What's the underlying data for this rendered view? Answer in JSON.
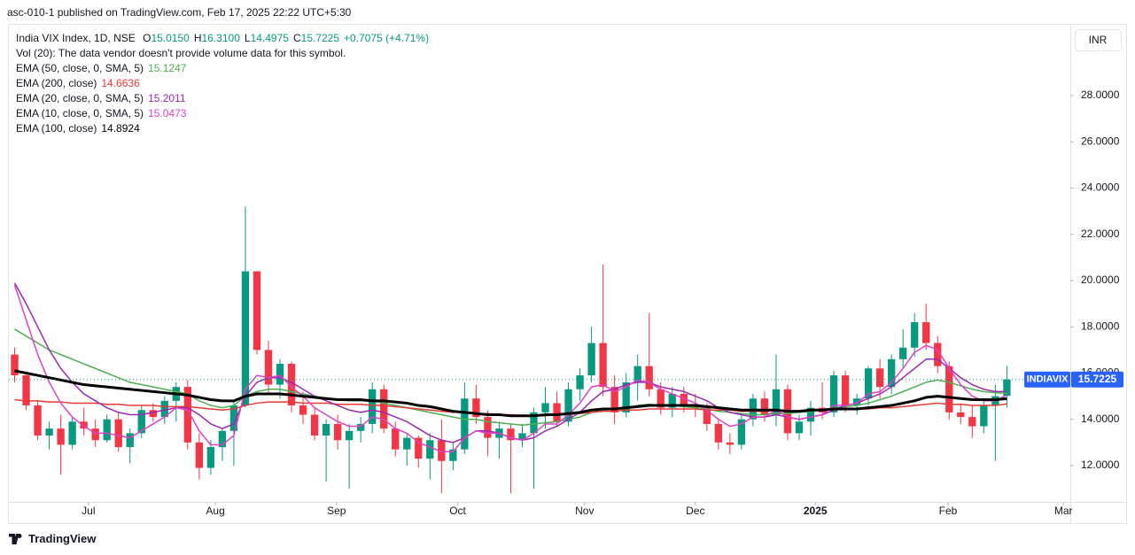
{
  "header": {
    "published": "asc-010-1 published on TradingView.com, Feb 17, 2025 22:22 UTC+5:30",
    "footer": "TradingView"
  },
  "chart_data": {
    "type": "candlestick",
    "symbol": "India VIX Index, 1D, NSE",
    "ohlc_legend": [
      {
        "key": "O",
        "value": "15.0150"
      },
      {
        "key": "H",
        "value": "16.3100"
      },
      {
        "key": "L",
        "value": "14.4975"
      },
      {
        "key": "C",
        "value": "15.7225"
      }
    ],
    "change": "+0.7075 (+4.71%)",
    "volume_note": "Vol (20): The data vendor doesn't provide volume data for this symbol.",
    "currency": "INR",
    "ticker": "INDIAVIX",
    "up_color": "#089981",
    "down_color": "#f23645",
    "ohlc": [
      [
        16.8,
        17.1,
        15.6,
        15.9
      ],
      [
        15.9,
        16.0,
        14.4,
        14.6
      ],
      [
        14.6,
        14.8,
        13.1,
        13.3
      ],
      [
        13.3,
        13.9,
        12.7,
        13.6
      ],
      [
        13.6,
        14.2,
        11.6,
        12.9
      ],
      [
        12.9,
        14.1,
        12.7,
        13.9
      ],
      [
        13.9,
        14.5,
        13.3,
        13.6
      ],
      [
        13.6,
        14.0,
        12.8,
        13.1
      ],
      [
        13.1,
        14.2,
        13.0,
        14.0
      ],
      [
        14.0,
        14.3,
        12.6,
        12.8
      ],
      [
        12.8,
        13.6,
        12.1,
        13.4
      ],
      [
        13.4,
        14.6,
        13.2,
        14.4
      ],
      [
        14.4,
        14.7,
        13.9,
        14.1
      ],
      [
        14.1,
        15.0,
        13.8,
        14.8
      ],
      [
        14.8,
        15.6,
        13.9,
        15.4
      ],
      [
        15.4,
        15.7,
        12.7,
        13.0
      ],
      [
        13.0,
        13.4,
        11.4,
        11.9
      ],
      [
        11.9,
        13.1,
        11.6,
        12.8
      ],
      [
        12.8,
        13.6,
        12.2,
        13.5
      ],
      [
        13.5,
        14.8,
        12.0,
        14.6
      ],
      [
        14.6,
        23.2,
        14.5,
        20.4
      ],
      [
        20.4,
        20.4,
        16.8,
        17.0
      ],
      [
        17.0,
        17.4,
        15.1,
        15.5
      ],
      [
        15.5,
        16.6,
        14.9,
        16.4
      ],
      [
        16.4,
        16.5,
        14.3,
        14.6
      ],
      [
        14.6,
        15.2,
        13.8,
        14.2
      ],
      [
        14.2,
        14.5,
        13.1,
        13.3
      ],
      [
        13.3,
        14.0,
        11.3,
        13.8
      ],
      [
        13.8,
        14.2,
        12.7,
        13.1
      ],
      [
        13.1,
        13.8,
        11.0,
        13.5
      ],
      [
        13.5,
        14.1,
        13.0,
        13.8
      ],
      [
        13.8,
        15.6,
        13.4,
        15.3
      ],
      [
        15.3,
        15.5,
        13.4,
        13.6
      ],
      [
        13.6,
        13.9,
        12.4,
        12.7
      ],
      [
        12.7,
        13.4,
        12.0,
        13.2
      ],
      [
        13.2,
        13.3,
        11.9,
        12.3
      ],
      [
        12.3,
        13.4,
        11.4,
        13.1
      ],
      [
        13.1,
        14.0,
        10.8,
        12.2
      ],
      [
        12.2,
        13.0,
        11.8,
        12.7
      ],
      [
        12.7,
        15.6,
        12.5,
        14.9
      ],
      [
        14.9,
        15.5,
        13.8,
        14.1
      ],
      [
        14.1,
        14.4,
        12.4,
        13.2
      ],
      [
        13.2,
        13.9,
        12.3,
        13.6
      ],
      [
        13.6,
        13.8,
        10.8,
        13.1
      ],
      [
        13.1,
        13.8,
        12.8,
        13.4
      ],
      [
        13.4,
        14.5,
        11.0,
        14.3
      ],
      [
        14.3,
        15.4,
        13.6,
        14.7
      ],
      [
        14.7,
        15.2,
        13.7,
        13.9
      ],
      [
        13.9,
        15.6,
        13.7,
        15.3
      ],
      [
        15.3,
        16.2,
        14.8,
        15.9
      ],
      [
        15.9,
        18.0,
        15.6,
        17.3
      ],
      [
        17.3,
        20.7,
        15.0,
        15.4
      ],
      [
        15.4,
        15.9,
        13.8,
        14.3
      ],
      [
        14.3,
        16.0,
        14.1,
        15.6
      ],
      [
        15.6,
        16.8,
        14.8,
        16.3
      ],
      [
        16.3,
        18.6,
        15.0,
        15.3
      ],
      [
        15.3,
        15.6,
        14.2,
        14.5
      ],
      [
        14.5,
        15.4,
        14.1,
        15.1
      ],
      [
        15.1,
        15.4,
        14.3,
        14.6
      ],
      [
        14.6,
        15.1,
        14.1,
        14.5
      ],
      [
        14.5,
        14.7,
        13.5,
        13.8
      ],
      [
        13.8,
        14.0,
        12.7,
        13.0
      ],
      [
        13.0,
        13.4,
        12.5,
        12.9
      ],
      [
        12.9,
        14.2,
        12.7,
        14.0
      ],
      [
        14.0,
        15.1,
        13.7,
        14.9
      ],
      [
        14.9,
        15.2,
        13.9,
        14.2
      ],
      [
        14.2,
        16.8,
        13.7,
        15.3
      ],
      [
        15.3,
        15.5,
        13.1,
        13.4
      ],
      [
        13.4,
        14.2,
        13.1,
        13.9
      ],
      [
        13.9,
        14.8,
        13.3,
        14.5
      ],
      [
        14.5,
        15.6,
        14.0,
        14.3
      ],
      [
        14.3,
        16.1,
        14.1,
        15.9
      ],
      [
        15.9,
        16.1,
        14.3,
        14.6
      ],
      [
        14.6,
        15.1,
        14.2,
        14.9
      ],
      [
        14.9,
        16.3,
        14.6,
        16.2
      ],
      [
        16.2,
        16.6,
        14.9,
        15.4
      ],
      [
        15.4,
        16.8,
        15.1,
        16.6
      ],
      [
        16.6,
        17.9,
        16.2,
        17.1
      ],
      [
        17.1,
        18.6,
        16.7,
        18.2
      ],
      [
        18.2,
        19.0,
        17.0,
        17.3
      ],
      [
        17.3,
        17.6,
        16.0,
        16.3
      ],
      [
        16.3,
        16.5,
        14.0,
        14.3
      ],
      [
        14.3,
        14.7,
        13.8,
        14.1
      ],
      [
        14.1,
        14.6,
        13.2,
        13.7
      ],
      [
        13.7,
        14.9,
        13.4,
        14.6
      ],
      [
        14.6,
        15.5,
        12.2,
        15.0
      ],
      [
        15.015,
        16.31,
        14.4975,
        15.7225
      ]
    ],
    "series": [
      {
        "name": "EMA (50, close, 0, SMA, 5)",
        "color": "#4caf50",
        "width": 1.5,
        "values": [
          17.9,
          17.6,
          17.3,
          17.0,
          16.8,
          16.6,
          16.4,
          16.2,
          16.0,
          15.8,
          15.6,
          15.5,
          15.4,
          15.3,
          15.2,
          15.1,
          14.8,
          14.6,
          14.5,
          14.6,
          15.0,
          15.2,
          15.3,
          15.3,
          15.2,
          15.1,
          15.0,
          14.9,
          14.85,
          14.8,
          14.8,
          14.8,
          14.7,
          14.6,
          14.5,
          14.4,
          14.3,
          14.2,
          14.1,
          14.0,
          14.0,
          13.9,
          13.85,
          13.8,
          13.75,
          13.8,
          13.85,
          13.9,
          14.0,
          14.1,
          14.3,
          14.4,
          14.45,
          14.5,
          14.6,
          14.65,
          14.6,
          14.6,
          14.55,
          14.5,
          14.45,
          14.35,
          14.3,
          14.25,
          14.2,
          14.2,
          14.25,
          14.25,
          14.3,
          14.35,
          14.4,
          14.5,
          14.55,
          14.6,
          14.7,
          14.85,
          15.0,
          15.2,
          15.4,
          15.6,
          15.7,
          15.6,
          15.45,
          15.3,
          15.2,
          15.15,
          15.1247
        ]
      },
      {
        "name": "EMA (200, close)",
        "color": "#e53935",
        "width": 1.5,
        "values": [
          14.85,
          14.8,
          14.8,
          14.75,
          14.75,
          14.7,
          14.7,
          14.7,
          14.65,
          14.65,
          14.6,
          14.6,
          14.6,
          14.55,
          14.55,
          14.55,
          14.5,
          14.45,
          14.4,
          14.45,
          14.6,
          14.7,
          14.75,
          14.75,
          14.75,
          14.7,
          14.7,
          14.7,
          14.65,
          14.65,
          14.65,
          14.6,
          14.6,
          14.55,
          14.5,
          14.45,
          14.4,
          14.35,
          14.3,
          14.3,
          14.25,
          14.25,
          14.2,
          14.2,
          14.15,
          14.15,
          14.15,
          14.2,
          14.2,
          14.25,
          14.3,
          14.35,
          14.35,
          14.4,
          14.4,
          14.45,
          14.45,
          14.45,
          14.45,
          14.45,
          14.4,
          14.4,
          14.4,
          14.35,
          14.35,
          14.35,
          14.4,
          14.35,
          14.35,
          14.4,
          14.4,
          14.4,
          14.45,
          14.45,
          14.45,
          14.5,
          14.5,
          14.55,
          14.6,
          14.65,
          14.7,
          14.65,
          14.65,
          14.6,
          14.6,
          14.6,
          14.6636
        ]
      },
      {
        "name": "EMA (20, close, 0, SMA, 5)",
        "color": "#9c27b0",
        "width": 1.5,
        "values": [
          19.9,
          19.0,
          18.0,
          17.0,
          16.2,
          15.6,
          15.1,
          14.8,
          14.5,
          14.3,
          14.2,
          14.2,
          14.3,
          14.4,
          14.5,
          14.5,
          14.2,
          13.8,
          13.6,
          13.8,
          15.0,
          15.6,
          15.8,
          15.8,
          15.6,
          15.3,
          15.0,
          14.8,
          14.6,
          14.4,
          14.3,
          14.4,
          14.3,
          14.1,
          13.9,
          13.6,
          13.3,
          13.1,
          13.0,
          13.2,
          13.5,
          13.5,
          13.4,
          13.2,
          13.1,
          13.2,
          13.5,
          13.7,
          14.0,
          14.3,
          14.8,
          15.2,
          15.3,
          15.5,
          15.6,
          15.6,
          15.4,
          15.3,
          15.2,
          15.0,
          14.8,
          14.5,
          14.3,
          14.2,
          14.1,
          14.1,
          14.2,
          14.1,
          14.0,
          14.1,
          14.2,
          14.4,
          14.6,
          14.7,
          14.9,
          15.1,
          15.4,
          15.8,
          16.2,
          16.6,
          16.6,
          16.2,
          15.8,
          15.5,
          15.3,
          15.2,
          15.2011
        ]
      },
      {
        "name": "EMA (10, close, 0, SMA, 5)",
        "color": "#e040c8",
        "width": 1.5,
        "values": [
          19.8,
          18.3,
          16.8,
          15.6,
          14.7,
          14.1,
          13.7,
          13.4,
          13.4,
          13.3,
          13.2,
          13.5,
          13.8,
          14.1,
          14.5,
          14.4,
          13.5,
          12.9,
          12.9,
          13.3,
          15.3,
          15.9,
          15.8,
          15.9,
          15.4,
          15.0,
          14.5,
          14.2,
          13.9,
          13.7,
          13.7,
          14.1,
          14.0,
          13.6,
          13.4,
          13.0,
          12.8,
          12.6,
          12.6,
          13.2,
          13.5,
          13.4,
          13.4,
          13.2,
          13.1,
          13.4,
          13.8,
          13.8,
          14.2,
          14.7,
          15.4,
          15.5,
          15.2,
          15.4,
          15.7,
          15.6,
          15.3,
          15.1,
          14.9,
          14.7,
          14.4,
          14.0,
          13.7,
          13.8,
          14.1,
          14.1,
          14.4,
          14.1,
          14.0,
          14.1,
          14.2,
          14.6,
          14.6,
          14.7,
          15.1,
          15.2,
          15.6,
          16.2,
          16.9,
          17.2,
          17.0,
          16.2,
          15.5,
          15.0,
          14.8,
          14.8,
          15.0473
        ]
      },
      {
        "name": "EMA (100, close)",
        "color": "#000000",
        "width": 3,
        "values": [
          16.1,
          16.0,
          15.9,
          15.8,
          15.7,
          15.6,
          15.5,
          15.45,
          15.4,
          15.35,
          15.3,
          15.25,
          15.2,
          15.15,
          15.1,
          15.05,
          14.95,
          14.85,
          14.8,
          14.8,
          15.0,
          15.1,
          15.1,
          15.1,
          15.05,
          15.0,
          14.95,
          14.9,
          14.85,
          14.85,
          14.85,
          14.8,
          14.8,
          14.75,
          14.7,
          14.6,
          14.55,
          14.45,
          14.35,
          14.3,
          14.25,
          14.2,
          14.2,
          14.15,
          14.15,
          14.15,
          14.2,
          14.2,
          14.25,
          14.3,
          14.4,
          14.45,
          14.45,
          14.5,
          14.55,
          14.6,
          14.6,
          14.6,
          14.6,
          14.6,
          14.55,
          14.5,
          14.45,
          14.4,
          14.4,
          14.4,
          14.4,
          14.35,
          14.35,
          14.4,
          14.4,
          14.45,
          14.45,
          14.45,
          14.5,
          14.55,
          14.6,
          14.7,
          14.8,
          14.95,
          15.0,
          14.95,
          14.9,
          14.85,
          14.85,
          14.85,
          14.8924
        ]
      }
    ],
    "xlim": [
      -0.5,
      91.5
    ],
    "xticks": [
      {
        "value": 6.4,
        "label": "Jul"
      },
      {
        "value": 17.4,
        "label": "Aug"
      },
      {
        "value": 27.9,
        "label": "Sep"
      },
      {
        "value": 38.4,
        "label": "Oct"
      },
      {
        "value": 49.4,
        "label": "Nov"
      },
      {
        "value": 59.0,
        "label": "Dec"
      },
      {
        "value": 69.4,
        "label": "2025"
      },
      {
        "value": 80.9,
        "label": "Feb"
      },
      {
        "value": 90.9,
        "label": "Mar"
      }
    ],
    "ylim": [
      10.43,
      31.06
    ],
    "yticks": [
      {
        "value": 12,
        "label": "12.0000"
      },
      {
        "value": 14,
        "label": "14.0000"
      },
      {
        "value": 16,
        "label": "16.0000"
      },
      {
        "value": 18,
        "label": "18.0000"
      },
      {
        "value": 20,
        "label": "20.0000"
      },
      {
        "value": 22,
        "label": "22.0000"
      },
      {
        "value": 24,
        "label": "24.0000"
      },
      {
        "value": 26,
        "label": "26.0000"
      },
      {
        "value": 28,
        "label": "28.0000"
      }
    ],
    "grid": false
  }
}
